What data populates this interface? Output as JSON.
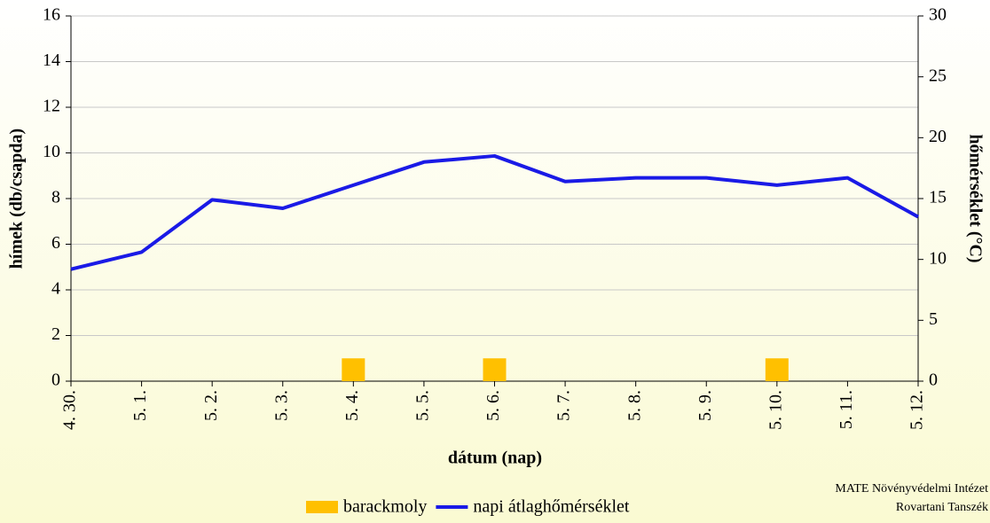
{
  "chart_data": {
    "type": "bar",
    "x_label": "dátum (nap)",
    "y_label": "hímek (db/csapda)",
    "y2_label": "hőmérséklet (°C)",
    "categories": [
      "4. 30.",
      "5. 1.",
      "5. 2.",
      "5. 3.",
      "5. 4.",
      "5. 5.",
      "5. 6.",
      "5. 7.",
      "5. 8.",
      "5. 9.",
      "5. 10.",
      "5. 11.",
      "5. 12."
    ],
    "series": [
      {
        "name": "barackmoly",
        "type": "bar",
        "color": "#ffc000",
        "values": [
          0,
          0,
          0,
          0,
          1,
          0,
          1,
          0,
          0,
          0,
          1,
          0,
          0
        ]
      },
      {
        "name": "napi átlaghőmérséklet",
        "type": "line",
        "axis": "y2",
        "color": "#1a1ae6",
        "values": [
          9.2,
          10.6,
          14.9,
          14.2,
          16.1,
          18.0,
          18.5,
          16.4,
          16.7,
          16.7,
          16.1,
          16.7,
          13.5
        ]
      }
    ],
    "ylim": [
      0,
      16
    ],
    "yticks": [
      0,
      2,
      4,
      6,
      8,
      10,
      12,
      14,
      16
    ],
    "y2lim": [
      0,
      30
    ],
    "y2ticks": [
      0,
      5,
      10,
      15,
      20,
      25,
      30
    ],
    "grid": true,
    "legend": "bottom",
    "source": [
      "MATE Növényvédelmi Intézet",
      "Rovartani Tanszék"
    ]
  }
}
